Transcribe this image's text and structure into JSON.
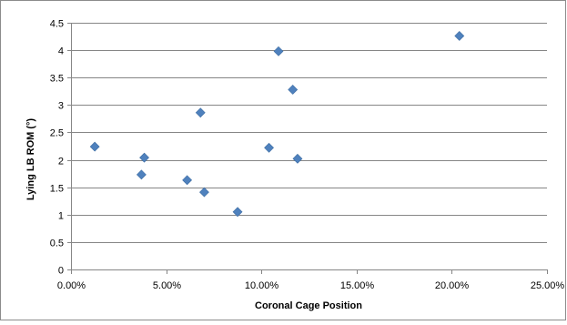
{
  "chart_data": {
    "type": "scatter",
    "title": "",
    "xlabel": "Coronal Cage Position",
    "ylabel": "Lying LB ROM (°)",
    "xlim": [
      0,
      0.25
    ],
    "ylim": [
      0,
      4.5
    ],
    "x_ticks": [
      0,
      0.05,
      0.1,
      0.15,
      0.2,
      0.25
    ],
    "x_tick_labels": [
      "0.00%",
      "5.00%",
      "10.00%",
      "15.00%",
      "20.00%",
      "25.00%"
    ],
    "y_ticks": [
      0,
      0.5,
      1,
      1.5,
      2,
      2.5,
      3,
      3.5,
      4,
      4.5
    ],
    "y_tick_labels": [
      "0",
      "0.5",
      "1",
      "1.5",
      "2",
      "2.5",
      "3",
      "3.5",
      "4",
      "4.5"
    ],
    "grid": true,
    "legend": "none",
    "marker": "diamond",
    "marker_color": "#4f81bd",
    "points": [
      {
        "x": 0.0125,
        "y": 2.24
      },
      {
        "x": 0.037,
        "y": 1.73
      },
      {
        "x": 0.0385,
        "y": 2.04
      },
      {
        "x": 0.061,
        "y": 1.63
      },
      {
        "x": 0.068,
        "y": 2.86
      },
      {
        "x": 0.07,
        "y": 1.41
      },
      {
        "x": 0.0875,
        "y": 1.05
      },
      {
        "x": 0.104,
        "y": 2.22
      },
      {
        "x": 0.109,
        "y": 3.98
      },
      {
        "x": 0.1165,
        "y": 3.28
      },
      {
        "x": 0.119,
        "y": 2.02
      },
      {
        "x": 0.204,
        "y": 4.26
      }
    ]
  }
}
